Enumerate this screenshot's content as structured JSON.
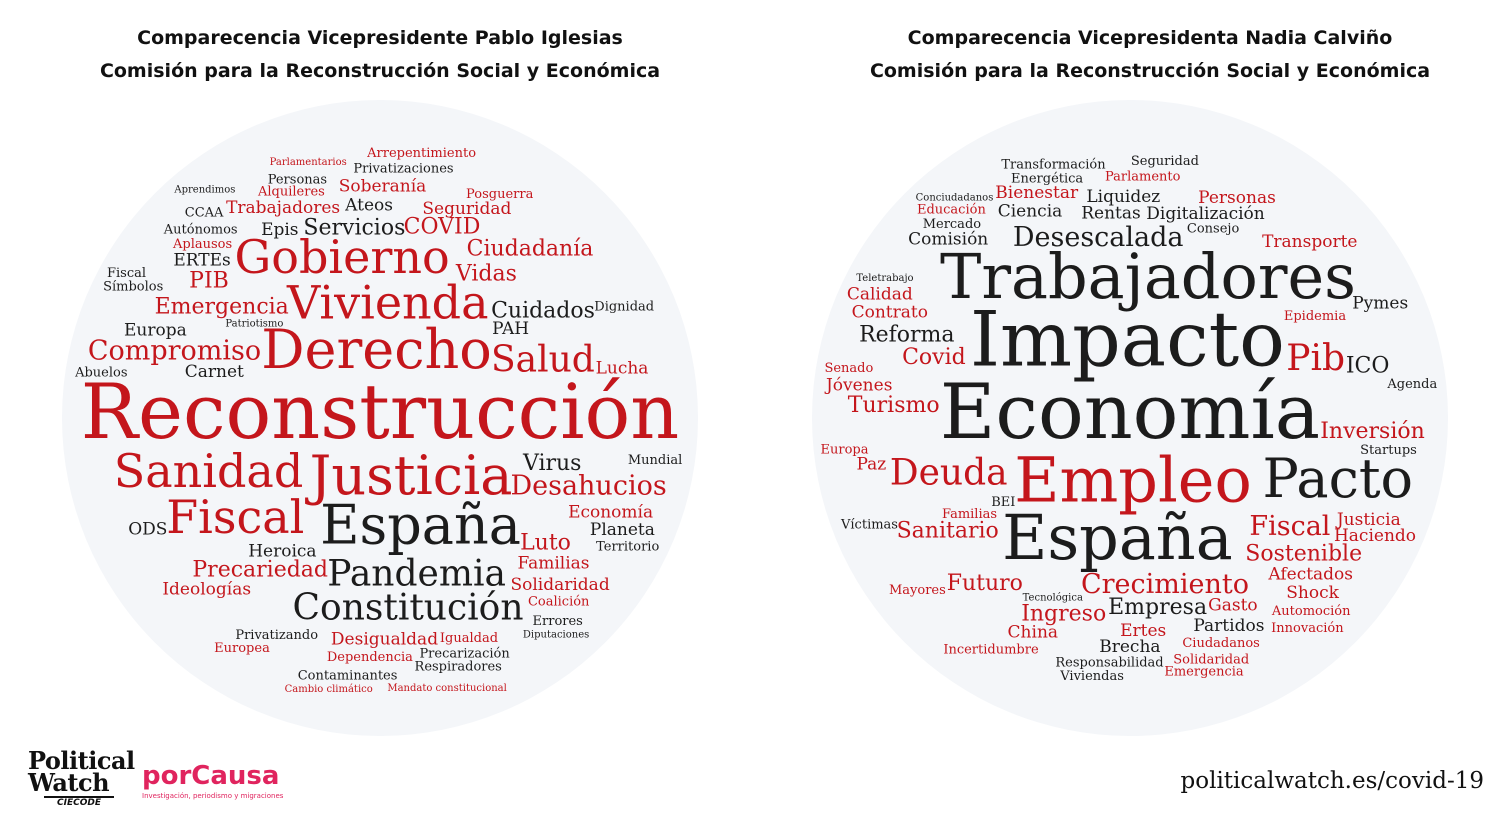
{
  "colors": {
    "red": "#c4161c",
    "dark": "#1c1c1c",
    "grey": "#555555",
    "cloud_bg": "#f4f6f9"
  },
  "left": {
    "title_line1": "Comparecencia Vicepresidente Pablo Iglesias",
    "title_line2": "Comisión para la Reconstrucción Social y Económica",
    "words": [
      {
        "text": "Reconstrucción",
        "weight": 10,
        "color": "red"
      },
      {
        "text": "Derecho",
        "weight": 8,
        "color": "red"
      },
      {
        "text": "Justicia",
        "weight": 8,
        "color": "red"
      },
      {
        "text": "España",
        "weight": 8,
        "color": "dark"
      },
      {
        "text": "Vivienda",
        "weight": 7,
        "color": "red"
      },
      {
        "text": "Sanidad",
        "weight": 7,
        "color": "red"
      },
      {
        "text": "Gobierno",
        "weight": 7,
        "color": "red"
      },
      {
        "text": "Fiscal",
        "weight": 7,
        "color": "red"
      },
      {
        "text": "Salud",
        "weight": 6,
        "color": "red"
      },
      {
        "text": "Pandemia",
        "weight": 6,
        "color": "dark"
      },
      {
        "text": "Constitución",
        "weight": 6,
        "color": "dark"
      },
      {
        "text": "Compromiso",
        "weight": 5,
        "color": "red"
      },
      {
        "text": "Desahucios",
        "weight": 5,
        "color": "red"
      },
      {
        "text": "Emergencia",
        "weight": 4,
        "color": "red"
      },
      {
        "text": "Virus",
        "weight": 4,
        "color": "dark"
      },
      {
        "text": "Cuidados",
        "weight": 4,
        "color": "dark"
      },
      {
        "text": "Precariedad",
        "weight": 4,
        "color": "red"
      },
      {
        "text": "Vidas",
        "weight": 4,
        "color": "red"
      },
      {
        "text": "Servicios",
        "weight": 4,
        "color": "dark"
      },
      {
        "text": "Ciudadanía",
        "weight": 4,
        "color": "red"
      },
      {
        "text": "Luto",
        "weight": 4,
        "color": "red"
      },
      {
        "text": "COVID",
        "weight": 4,
        "color": "red"
      },
      {
        "text": "PIB",
        "weight": 4,
        "color": "red"
      },
      {
        "text": "Europa",
        "weight": 3,
        "color": "dark"
      },
      {
        "text": "Carnet",
        "weight": 3,
        "color": "dark"
      },
      {
        "text": "Heroica",
        "weight": 3,
        "color": "dark"
      },
      {
        "text": "Lucha",
        "weight": 3,
        "color": "red"
      },
      {
        "text": "Familias",
        "weight": 3,
        "color": "red"
      },
      {
        "text": "Economía",
        "weight": 3,
        "color": "red"
      },
      {
        "text": "ERTEs",
        "weight": 3,
        "color": "dark"
      },
      {
        "text": "Epis",
        "weight": 3,
        "color": "dark"
      },
      {
        "text": "Ateos",
        "weight": 3,
        "color": "dark"
      },
      {
        "text": "Seguridad",
        "weight": 3,
        "color": "red"
      },
      {
        "text": "Solidaridad",
        "weight": 3,
        "color": "red"
      },
      {
        "text": "Desigualdad",
        "weight": 3,
        "color": "red"
      },
      {
        "text": "Ideologías",
        "weight": 3,
        "color": "red"
      },
      {
        "text": "Trabajadores",
        "weight": 3,
        "color": "red"
      },
      {
        "text": "Planeta",
        "weight": 3,
        "color": "dark"
      },
      {
        "text": "Soberanía",
        "weight": 3,
        "color": "red"
      },
      {
        "text": "Privatizando",
        "weight": 2,
        "color": "dark"
      },
      {
        "text": "Dependencia",
        "weight": 2,
        "color": "red"
      },
      {
        "text": "Aplausos",
        "weight": 2,
        "color": "red"
      },
      {
        "text": "ODS",
        "weight": 3,
        "color": "dark"
      },
      {
        "text": "Dignidad",
        "weight": 2,
        "color": "dark"
      },
      {
        "text": "Mundial",
        "weight": 2,
        "color": "dark"
      },
      {
        "text": "Abuelos",
        "weight": 2,
        "color": "dark"
      },
      {
        "text": "Coalición",
        "weight": 2,
        "color": "red"
      },
      {
        "text": "Autónomos",
        "weight": 2,
        "color": "dark"
      },
      {
        "text": "Patriotismo",
        "weight": 1,
        "color": "dark"
      },
      {
        "text": "Alquileres",
        "weight": 2,
        "color": "red"
      },
      {
        "text": "Igualdad",
        "weight": 2,
        "color": "red"
      },
      {
        "text": "Territorio",
        "weight": 2,
        "color": "dark"
      },
      {
        "text": "Posguerra",
        "weight": 2,
        "color": "red"
      },
      {
        "text": "Precarización",
        "weight": 2,
        "color": "dark"
      },
      {
        "text": "Privatizaciones",
        "weight": 2,
        "color": "dark"
      },
      {
        "text": "Símbolos",
        "weight": 2,
        "color": "dark"
      },
      {
        "text": "Personas",
        "weight": 2,
        "color": "dark"
      },
      {
        "text": "Contaminantes",
        "weight": 2,
        "color": "dark"
      },
      {
        "text": "Errores",
        "weight": 2,
        "color": "dark"
      },
      {
        "text": "Respiradores",
        "weight": 2,
        "color": "dark"
      },
      {
        "text": "PAH",
        "weight": 3,
        "color": "dark"
      },
      {
        "text": "Fiscal",
        "weight": 2,
        "color": "dark"
      },
      {
        "text": "Europea",
        "weight": 2,
        "color": "red"
      },
      {
        "text": "CCAA",
        "weight": 2,
        "color": "dark"
      },
      {
        "text": "Arrepentimiento",
        "weight": 2,
        "color": "red"
      },
      {
        "text": "Diputaciones",
        "weight": 1,
        "color": "dark"
      },
      {
        "text": "Mandato constitucional",
        "weight": 1,
        "color": "red"
      },
      {
        "text": "Parlamentarios",
        "weight": 1,
        "color": "red"
      },
      {
        "text": "Cambio climático",
        "weight": 1,
        "color": "red"
      },
      {
        "text": "Aprendimos",
        "weight": 1,
        "color": "dark"
      }
    ]
  },
  "right": {
    "title_line1": "Comparecencia Vicepresidenta Nadia Calviño",
    "title_line2": "Comisión para la Reconstrucción Social y Económica",
    "words": [
      {
        "text": "Economía",
        "weight": 10,
        "color": "dark"
      },
      {
        "text": "Impacto",
        "weight": 10,
        "color": "dark"
      },
      {
        "text": "Empleo",
        "weight": 9,
        "color": "red"
      },
      {
        "text": "España",
        "weight": 9,
        "color": "dark"
      },
      {
        "text": "Trabajadores",
        "weight": 9,
        "color": "dark"
      },
      {
        "text": "Pacto",
        "weight": 8,
        "color": "dark"
      },
      {
        "text": "Deuda",
        "weight": 6,
        "color": "red"
      },
      {
        "text": "Pib",
        "weight": 6,
        "color": "red"
      },
      {
        "text": "Fiscal",
        "weight": 5,
        "color": "red"
      },
      {
        "text": "Crecimiento",
        "weight": 5,
        "color": "red"
      },
      {
        "text": "Desescalada",
        "weight": 5,
        "color": "dark"
      },
      {
        "text": "Sanitario",
        "weight": 4,
        "color": "red"
      },
      {
        "text": "Covid",
        "weight": 4,
        "color": "red"
      },
      {
        "text": "Empresa",
        "weight": 4,
        "color": "dark"
      },
      {
        "text": "Inversión",
        "weight": 4,
        "color": "red"
      },
      {
        "text": "Turismo",
        "weight": 4,
        "color": "red"
      },
      {
        "text": "Sostenible",
        "weight": 4,
        "color": "red"
      },
      {
        "text": "Reforma",
        "weight": 4,
        "color": "dark"
      },
      {
        "text": "Ingreso",
        "weight": 4,
        "color": "red"
      },
      {
        "text": "Rentas",
        "weight": 3,
        "color": "dark"
      },
      {
        "text": "Digitalización",
        "weight": 3,
        "color": "dark"
      },
      {
        "text": "Futuro",
        "weight": 4,
        "color": "red"
      },
      {
        "text": "Afectados",
        "weight": 3,
        "color": "red"
      },
      {
        "text": "Gasto",
        "weight": 3,
        "color": "red"
      },
      {
        "text": "Ertes",
        "weight": 3,
        "color": "red"
      },
      {
        "text": "ICO",
        "weight": 4,
        "color": "dark"
      },
      {
        "text": "Paz",
        "weight": 3,
        "color": "red"
      },
      {
        "text": "Justicia",
        "weight": 3,
        "color": "red"
      },
      {
        "text": "Jóvenes",
        "weight": 3,
        "color": "red"
      },
      {
        "text": "Contrato",
        "weight": 3,
        "color": "red"
      },
      {
        "text": "Ciencia",
        "weight": 3,
        "color": "dark"
      },
      {
        "text": "Liquidez",
        "weight": 3,
        "color": "dark"
      },
      {
        "text": "Partidos",
        "weight": 3,
        "color": "dark"
      },
      {
        "text": "Startups",
        "weight": 2,
        "color": "dark"
      },
      {
        "text": "Transporte",
        "weight": 3,
        "color": "red"
      },
      {
        "text": "Shock",
        "weight": 3,
        "color": "red"
      },
      {
        "text": "Brecha",
        "weight": 3,
        "color": "dark"
      },
      {
        "text": "China",
        "weight": 3,
        "color": "red"
      },
      {
        "text": "Comisión",
        "weight": 3,
        "color": "dark"
      },
      {
        "text": "Pymes",
        "weight": 3,
        "color": "dark"
      },
      {
        "text": "Calidad",
        "weight": 3,
        "color": "red"
      },
      {
        "text": "Bienestar",
        "weight": 3,
        "color": "red"
      },
      {
        "text": "Haciendo",
        "weight": 3,
        "color": "red"
      },
      {
        "text": "Ciudadanos",
        "weight": 2,
        "color": "red"
      },
      {
        "text": "Parlamento",
        "weight": 2,
        "color": "red"
      },
      {
        "text": "Familias",
        "weight": 2,
        "color": "red"
      },
      {
        "text": "Automoción",
        "weight": 2,
        "color": "red"
      },
      {
        "text": "Personas",
        "weight": 3,
        "color": "red"
      },
      {
        "text": "Epidemia",
        "weight": 2,
        "color": "red"
      },
      {
        "text": "Agenda",
        "weight": 2,
        "color": "dark"
      },
      {
        "text": "BEI",
        "weight": 2,
        "color": "dark"
      },
      {
        "text": "Europa",
        "weight": 2,
        "color": "red"
      },
      {
        "text": "Senado",
        "weight": 2,
        "color": "red"
      },
      {
        "text": "Mercado",
        "weight": 2,
        "color": "dark"
      },
      {
        "text": "Responsabilidad",
        "weight": 2,
        "color": "dark"
      },
      {
        "text": "Energética",
        "weight": 2,
        "color": "dark"
      },
      {
        "text": "Víctimas",
        "weight": 2,
        "color": "dark"
      },
      {
        "text": "Solidaridad",
        "weight": 2,
        "color": "red"
      },
      {
        "text": "Educación",
        "weight": 2,
        "color": "red"
      },
      {
        "text": "Incertidumbre",
        "weight": 2,
        "color": "red"
      },
      {
        "text": "Transformación",
        "weight": 2,
        "color": "dark"
      },
      {
        "text": "Innovación",
        "weight": 2,
        "color": "red"
      },
      {
        "text": "Consejo",
        "weight": 2,
        "color": "dark"
      },
      {
        "text": "Seguridad",
        "weight": 2,
        "color": "dark"
      },
      {
        "text": "Conciudadanos",
        "weight": 1,
        "color": "dark"
      },
      {
        "text": "Emergencia",
        "weight": 2,
        "color": "red"
      },
      {
        "text": "Viviendas",
        "weight": 2,
        "color": "dark"
      },
      {
        "text": "Mayores",
        "weight": 2,
        "color": "red"
      },
      {
        "text": "Tecnológica",
        "weight": 1,
        "color": "dark"
      },
      {
        "text": "Teletrabajo",
        "weight": 1,
        "color": "dark"
      }
    ]
  },
  "logos": {
    "political_watch_line1": "Political",
    "political_watch_line2": "Watch",
    "political_watch_sub": "CIECODE",
    "porcausa_name": "porCausa",
    "porcausa_tagline": "Investigación, periodismo y migraciones"
  },
  "footer": {
    "url": "politicalwatch.es/covid-19"
  }
}
